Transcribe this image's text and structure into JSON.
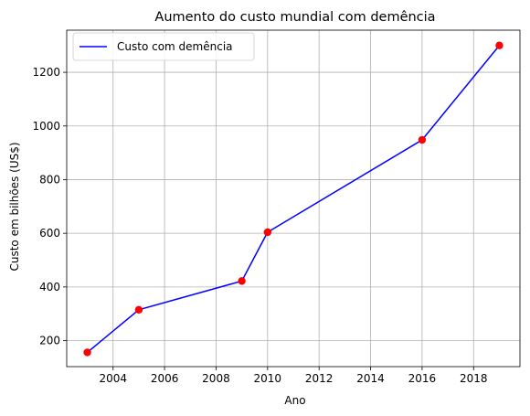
{
  "chart_data": {
    "type": "line",
    "title": "Aumento do custo mundial com demência",
    "xlabel": "Ano",
    "ylabel": "Custo em bilhões (US$)",
    "xlim": [
      2002.2,
      2019.8
    ],
    "ylim": [
      103,
      1357
    ],
    "xticks": [
      2004,
      2006,
      2008,
      2010,
      2012,
      2014,
      2016,
      2018
    ],
    "yticks": [
      200,
      400,
      600,
      800,
      1000,
      1200
    ],
    "grid": true,
    "legend": {
      "position": "top-left"
    },
    "series": [
      {
        "name": "Custo com demência",
        "color": "#0000ff",
        "marker_color": "#ff0000",
        "x": [
          2003,
          2005,
          2009,
          2010,
          2016,
          2019
        ],
        "y": [
          156,
          315,
          422,
          604,
          948,
          1300
        ]
      }
    ]
  }
}
